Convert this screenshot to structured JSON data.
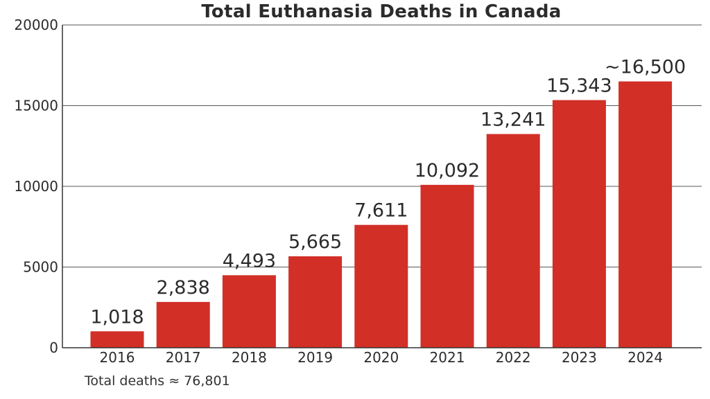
{
  "chart_data": {
    "type": "bar",
    "title": "Total Euthanasia Deaths in Canada",
    "categories": [
      "2016",
      "2017",
      "2018",
      "2019",
      "2020",
      "2021",
      "2022",
      "2023",
      "2024"
    ],
    "values": [
      1018,
      2838,
      4493,
      5665,
      7611,
      10092,
      13241,
      15343,
      16500
    ],
    "data_labels": [
      "1,018",
      "2,838",
      "4,493",
      "5,665",
      "7,611",
      "10,092",
      "13,241",
      "15,343",
      "~16,500"
    ],
    "xlabel": "",
    "ylabel": "",
    "ylim": [
      0,
      20000
    ],
    "yticks": [
      "0",
      "5000",
      "10000",
      "15000",
      "20000"
    ],
    "grid": "horizontal",
    "legend": "none",
    "bar_color": "#d22f27"
  },
  "footnote": "Total deaths ≈ 76,801"
}
